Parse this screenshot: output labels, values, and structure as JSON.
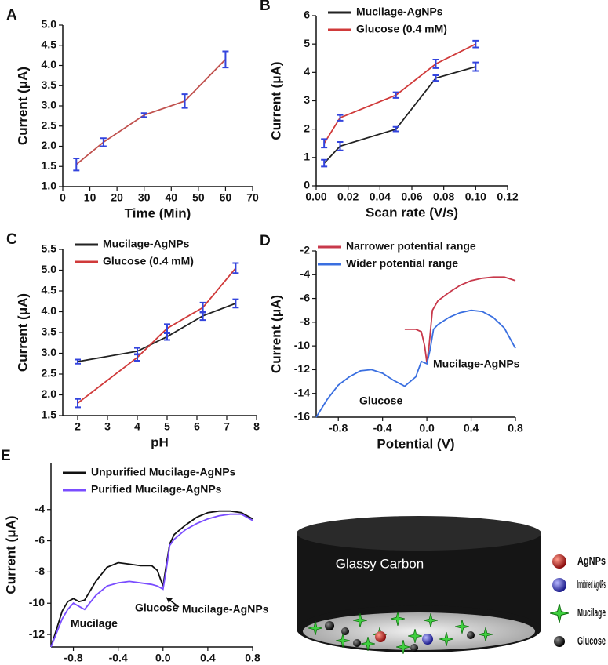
{
  "chart_data": [
    {
      "type": "line",
      "label": "A",
      "xlabel": "Time (Min)",
      "ylabel": "Current (μA)",
      "x": [
        5,
        15,
        30,
        45,
        60
      ],
      "values": [
        1.55,
        2.1,
        2.77,
        3.12,
        4.15
      ],
      "errors": [
        0.15,
        0.1,
        0.05,
        0.17,
        0.2
      ],
      "color": "#c0504d",
      "error_color": "#3344dd",
      "xlim": [
        0,
        70
      ],
      "xticks": [
        0,
        10,
        20,
        30,
        40,
        50,
        60,
        70
      ],
      "ylim": [
        1,
        5
      ],
      "yticks": [
        {
          "value": 1,
          "label": "1.0"
        },
        1.5,
        {
          "value": 2,
          "label": "2.0"
        },
        2.5,
        {
          "value": 3,
          "label": "3.0"
        },
        3.5,
        {
          "value": 4,
          "label": "4.0"
        },
        4.5,
        {
          "value": 5,
          "label": "5.0"
        }
      ]
    },
    {
      "type": "line",
      "label": "B",
      "xlabel": "Scan rate (V/s)",
      "ylabel": "Current (μA)",
      "legend": "upper left",
      "x": [
        0.005,
        0.015,
        0.05,
        0.075,
        0.1
      ],
      "error_color": "#3344dd",
      "series": [
        {
          "name": "Mucilage-AgNPs",
          "color": "#222222",
          "values": [
            0.8,
            1.4,
            2.0,
            3.8,
            4.2
          ],
          "errors": [
            0.12,
            0.15,
            0.08,
            0.1,
            0.15
          ]
        },
        {
          "name": "Glucose (0.4 mM)",
          "color": "#d03a3a",
          "values": [
            1.5,
            2.4,
            3.2,
            4.3,
            5.0
          ],
          "errors": [
            0.15,
            0.1,
            0.1,
            0.15,
            0.12
          ]
        }
      ],
      "xlim": [
        0,
        0.12
      ],
      "xticks": [
        {
          "value": 0,
          "label": "0.00"
        },
        0.02,
        0.04,
        0.06,
        0.08,
        {
          "value": 0.1,
          "label": "0.10"
        },
        0.12
      ],
      "ylim": [
        0,
        6
      ],
      "yticks": [
        0,
        1,
        2,
        3,
        4,
        5,
        6
      ]
    },
    {
      "type": "line",
      "label": "C",
      "xlabel": "pH",
      "ylabel": "Current (μA)",
      "legend": "upper left",
      "x": [
        2,
        4,
        5,
        6.2,
        7.3
      ],
      "error_color": "#3344dd",
      "series": [
        {
          "name": "Mucilage-AgNPs",
          "color": "#222222",
          "values": [
            2.8,
            3.05,
            3.4,
            3.9,
            4.2
          ],
          "errors": [
            0.05,
            0.08,
            0.08,
            0.1,
            0.1
          ]
        },
        {
          "name": "Glucose (0.4 mM)",
          "color": "#d03a3a",
          "values": [
            1.8,
            2.9,
            3.6,
            4.1,
            5.05
          ],
          "errors": [
            0.1,
            0.08,
            0.1,
            0.12,
            0.12
          ]
        }
      ],
      "xlim": [
        1.5,
        8
      ],
      "xticks": [
        2,
        3,
        4,
        5,
        6,
        7,
        8
      ],
      "ylim": [
        1.5,
        5.5
      ],
      "yticks": [
        1.5,
        {
          "value": 2,
          "label": "2.0"
        },
        2.5,
        {
          "value": 3,
          "label": "3.0"
        },
        3.5,
        {
          "value": 4,
          "label": "4.0"
        },
        4.5,
        {
          "value": 5,
          "label": "5.0"
        },
        5.5
      ]
    },
    {
      "type": "line",
      "label": "D",
      "xlabel": "Potential (V)",
      "ylabel": "Current (μA)",
      "legend": "upper left",
      "series": [
        {
          "name": "Narrower potential range",
          "color": "#c8394b",
          "x": [
            -0.2,
            -0.1,
            -0.05,
            -0.02,
            0.0,
            0.02,
            0.05,
            0.1,
            0.2,
            0.3,
            0.4,
            0.5,
            0.6,
            0.7,
            0.8
          ],
          "values": [
            -8.6,
            -8.6,
            -8.8,
            -10,
            -11.4,
            -10,
            -7,
            -6.2,
            -5.5,
            -4.9,
            -4.5,
            -4.3,
            -4.2,
            -4.2,
            -4.5
          ]
        },
        {
          "name": "Wider potential range",
          "color": "#3a6fe0",
          "x": [
            -1,
            -0.9,
            -0.8,
            -0.7,
            -0.6,
            -0.5,
            -0.4,
            -0.3,
            -0.2,
            -0.1,
            -0.05,
            0.0,
            0.03,
            0.06,
            0.1,
            0.2,
            0.3,
            0.4,
            0.5,
            0.6,
            0.7,
            0.8
          ],
          "values": [
            -16,
            -14.5,
            -13.3,
            -12.6,
            -12.1,
            -12.0,
            -12.3,
            -12.9,
            -13.4,
            -12.6,
            -11.3,
            -11.5,
            -10.3,
            -8.6,
            -8.2,
            -7.6,
            -7.2,
            -7.0,
            -7.1,
            -7.6,
            -8.5,
            -10.2
          ]
        }
      ],
      "annotations": [
        "Mucilage-AgNPs",
        "Glucose"
      ],
      "xlim": [
        -1,
        0.8
      ],
      "xticks": [
        -0.8,
        -0.4,
        {
          "value": 0,
          "label": "0.0"
        },
        0.4,
        0.8
      ],
      "ylim": [
        -16,
        -2
      ],
      "yticks": [
        -16,
        -14,
        -12,
        -10,
        -8,
        -6,
        -4,
        -2
      ]
    },
    {
      "type": "line",
      "label": "E",
      "xlabel": "Potential (V)",
      "ylabel": "Current (μA)",
      "legend": "upper left",
      "x": [
        -1,
        -0.9,
        -0.85,
        -0.8,
        -0.75,
        -0.7,
        -0.6,
        -0.5,
        -0.4,
        -0.3,
        -0.2,
        -0.1,
        -0.05,
        0.0,
        0.03,
        0.06,
        0.1,
        0.2,
        0.3,
        0.4,
        0.5,
        0.6,
        0.7,
        0.8
      ],
      "series": [
        {
          "name": "Unpurified Mucilage-AgNPs",
          "color": "#111111",
          "values": [
            -12.8,
            -10.5,
            -9.9,
            -9.7,
            -9.9,
            -9.8,
            -8.6,
            -7.7,
            -7.4,
            -7.5,
            -7.6,
            -7.6,
            -7.9,
            -8.9,
            -7.5,
            -6.2,
            -5.6,
            -5.0,
            -4.5,
            -4.2,
            -4.1,
            -4.1,
            -4.2,
            -4.6
          ]
        },
        {
          "name": "Purified Mucilage-AgNPs",
          "color": "#7a4dff",
          "values": [
            -12.8,
            -11,
            -10.4,
            -10.0,
            -10.2,
            -10.4,
            -9.5,
            -8.9,
            -8.7,
            -8.6,
            -8.7,
            -8.8,
            -8.9,
            -9.1,
            -7.8,
            -6.3,
            -5.9,
            -5.3,
            -4.9,
            -4.6,
            -4.4,
            -4.3,
            -4.3,
            -4.7
          ]
        }
      ],
      "annotations": [
        "Mucilage",
        "Glucose",
        "Mucilage-AgNPs"
      ],
      "xlim": [
        -1,
        0.8
      ],
      "xticks": [
        -0.8,
        -0.4,
        {
          "value": 0,
          "label": "0.0"
        },
        0.4,
        0.8
      ],
      "ylim": [
        -12.8,
        -1
      ],
      "yticks": [
        -12,
        -10,
        -8,
        -6,
        -4
      ]
    }
  ],
  "diagram": {
    "title": "Glassy Carbon",
    "legend": [
      "AgNPs",
      "Inhibited AgNPs",
      "Mucilage",
      "Glucose"
    ]
  }
}
